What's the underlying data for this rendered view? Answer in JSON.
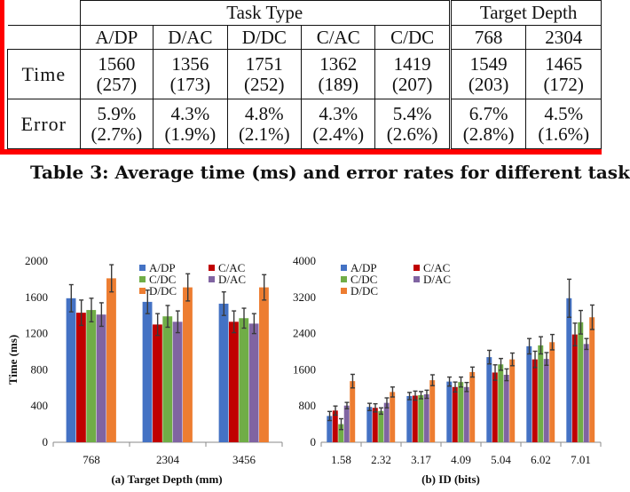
{
  "table": {
    "header_group_task": "Task Type",
    "header_group_depth": "Target Depth",
    "col_labels": [
      "A/DP",
      "D/AC",
      "D/DC",
      "C/AC",
      "C/DC",
      "768",
      "2304"
    ],
    "rows": [
      {
        "label": "Time",
        "cells": [
          [
            "1560",
            "(257)"
          ],
          [
            "1356",
            "(173)"
          ],
          [
            "1751",
            "(252)"
          ],
          [
            "1362",
            "(189)"
          ],
          [
            "1419",
            "(207)"
          ],
          [
            "1549",
            "(203)"
          ],
          [
            "1465",
            "(172)"
          ]
        ]
      },
      {
        "label": "Error",
        "cells": [
          [
            "5.9%",
            "(2.7%)"
          ],
          [
            "4.3%",
            "(1.9%)"
          ],
          [
            "4.8%",
            "(2.1%)"
          ],
          [
            "4.3%",
            "(2.4%)"
          ],
          [
            "5.4%",
            "(2.6%)"
          ],
          [
            "6.7%",
            "(2.8%)"
          ],
          [
            "4.5%",
            "(1.6%)"
          ]
        ]
      }
    ]
  },
  "caption": "Table 3: Average time (ms) and error rates for different task",
  "colors": {
    "A/DP": "#4472c4",
    "C/AC": "#c00000",
    "C/DC": "#70ad47",
    "D/AC": "#8064a2",
    "D/DC": "#ed7d31",
    "frame": "#ff0000"
  },
  "chart_data": [
    {
      "type": "bar",
      "xlabel": "(a) Target Depth (mm)",
      "ylabel": "Time (ms)",
      "ylim": [
        0,
        2000
      ],
      "yticks": [
        "0",
        "400",
        "800",
        "1200",
        "1600",
        "2000"
      ],
      "categories": [
        "768",
        "2304",
        "3456"
      ],
      "legend_placement": "top-center",
      "series": [
        {
          "name": "A/DP",
          "values": [
            1590,
            1550,
            1530
          ],
          "errors": [
            150,
            130,
            130
          ]
        },
        {
          "name": "C/AC",
          "values": [
            1430,
            1300,
            1330
          ],
          "errors": [
            140,
            120,
            120
          ]
        },
        {
          "name": "C/DC",
          "values": [
            1460,
            1390,
            1370
          ],
          "errors": [
            130,
            120,
            110
          ]
        },
        {
          "name": "D/AC",
          "values": [
            1410,
            1330,
            1310
          ],
          "errors": [
            130,
            120,
            110
          ]
        },
        {
          "name": "D/DC",
          "values": [
            1810,
            1710,
            1710
          ],
          "errors": [
            150,
            150,
            140
          ]
        }
      ]
    },
    {
      "type": "bar",
      "xlabel": "(b) ID (bits)",
      "ylabel": "",
      "ylim": [
        0,
        4000
      ],
      "yticks": [
        "0",
        "800",
        "1600",
        "2400",
        "3200",
        "4000"
      ],
      "categories": [
        "1.58",
        "2.32",
        "3.17",
        "4.09",
        "5.04",
        "6.02",
        "7.01"
      ],
      "legend_placement": "top-left",
      "series": [
        {
          "name": "A/DP",
          "values": [
            580,
            780,
            1020,
            1340,
            1880,
            2120,
            3180
          ],
          "errors": [
            100,
            80,
            80,
            100,
            150,
            170,
            420
          ]
        },
        {
          "name": "C/AC",
          "values": [
            700,
            760,
            1030,
            1220,
            1540,
            1830,
            2380
          ],
          "errors": [
            100,
            90,
            100,
            110,
            170,
            180,
            250
          ]
        },
        {
          "name": "C/DC",
          "values": [
            400,
            690,
            1040,
            1330,
            1720,
            2140,
            2650
          ],
          "errors": [
            120,
            70,
            80,
            110,
            130,
            190,
            260
          ]
        },
        {
          "name": "D/AC",
          "values": [
            810,
            870,
            1060,
            1220,
            1490,
            1840,
            2170
          ],
          "errors": [
            70,
            110,
            90,
            100,
            130,
            140,
            120
          ]
        },
        {
          "name": "D/DC",
          "values": [
            1350,
            1110,
            1370,
            1550,
            1830,
            2210,
            2760
          ],
          "errors": [
            150,
            110,
            120,
            110,
            140,
            170,
            270
          ]
        }
      ]
    }
  ]
}
